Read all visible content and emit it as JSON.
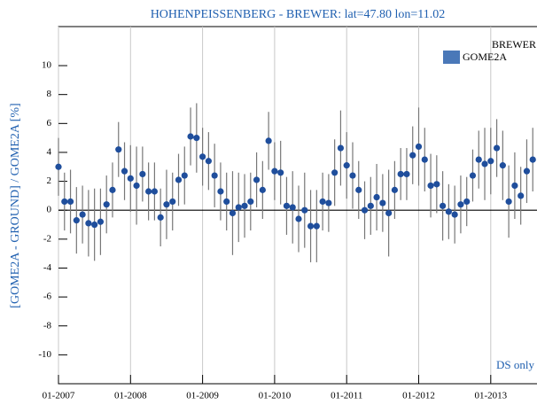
{
  "chart_data": {
    "type": "errorbar-scatter",
    "title": "HOHENPEISSENBERG - BREWER: lat=47.80 lon=11.02",
    "y_label": "[GOME2A - GROUND] / GOME2A [%]",
    "legend_title": "BREWER",
    "annotation": "DS only",
    "legend": "top-right",
    "grid": true,
    "x": [
      "2007-01",
      "2007-02",
      "2007-03",
      "2007-04",
      "2007-05",
      "2007-06",
      "2007-07",
      "2007-08",
      "2007-09",
      "2007-10",
      "2007-11",
      "2007-12",
      "2008-01",
      "2008-02",
      "2008-03",
      "2008-04",
      "2008-05",
      "2008-06",
      "2008-07",
      "2008-08",
      "2008-09",
      "2008-10",
      "2008-11",
      "2008-12",
      "2009-01",
      "2009-02",
      "2009-03",
      "2009-04",
      "2009-05",
      "2009-06",
      "2009-07",
      "2009-08",
      "2009-09",
      "2009-10",
      "2009-11",
      "2009-12",
      "2010-01",
      "2010-02",
      "2010-03",
      "2010-04",
      "2010-05",
      "2010-06",
      "2010-07",
      "2010-08",
      "2010-09",
      "2010-10",
      "2010-11",
      "2010-12",
      "2011-01",
      "2011-02",
      "2011-03",
      "2011-04",
      "2011-05",
      "2011-06",
      "2011-07",
      "2011-08",
      "2011-09",
      "2011-10",
      "2011-11",
      "2011-12",
      "2012-01",
      "2012-02",
      "2012-03",
      "2012-04",
      "2012-05",
      "2012-06",
      "2012-07",
      "2012-08",
      "2012-09",
      "2012-10",
      "2012-11",
      "2012-12",
      "2013-01",
      "2013-02",
      "2013-03",
      "2013-04",
      "2013-05",
      "2013-06",
      "2013-07",
      "2013-08"
    ],
    "series": [
      {
        "name": "GOME2A",
        "color": "#1f4e9c",
        "legend_color": "#4a78b8",
        "values": [
          3.0,
          0.6,
          0.6,
          -0.7,
          -0.3,
          -0.9,
          -1.0,
          -0.8,
          0.4,
          1.4,
          4.2,
          2.7,
          2.2,
          1.7,
          2.5,
          1.3,
          1.3,
          -0.5,
          0.4,
          0.6,
          2.1,
          2.4,
          5.1,
          5.0,
          3.7,
          3.4,
          2.4,
          1.3,
          0.6,
          -0.2,
          0.2,
          0.3,
          0.6,
          2.1,
          1.4,
          4.8,
          2.7,
          2.6,
          0.3,
          0.2,
          -0.6,
          0.0,
          -1.1,
          -1.1,
          0.6,
          0.5,
          2.6,
          4.3,
          3.1,
          2.4,
          1.4,
          0.0,
          0.3,
          0.9,
          0.5,
          -0.2,
          1.4,
          2.5,
          2.5,
          3.8,
          4.4,
          3.5,
          1.7,
          1.8,
          0.3,
          -0.1,
          -0.3,
          0.4,
          0.6,
          2.4,
          3.5,
          3.2,
          3.4,
          4.3,
          3.1,
          0.6,
          1.7,
          1.0,
          2.7,
          3.5
        ],
        "errors": [
          2.0,
          2.0,
          2.2,
          2.3,
          2.0,
          2.3,
          2.5,
          2.3,
          2.0,
          1.9,
          1.9,
          2.0,
          2.3,
          2.7,
          1.9,
          2.0,
          2.0,
          2.0,
          2.4,
          2.0,
          1.8,
          2.0,
          2.0,
          2.4,
          2.0,
          2.0,
          2.2,
          2.0,
          2.0,
          2.9,
          2.4,
          2.2,
          2.0,
          1.9,
          2.0,
          2.0,
          2.0,
          2.2,
          2.0,
          2.5,
          2.3,
          2.6,
          2.5,
          2.5,
          2.0,
          2.0,
          2.3,
          2.6,
          2.3,
          2.3,
          2.0,
          2.0,
          2.0,
          2.3,
          2.0,
          3.0,
          2.0,
          1.8,
          1.8,
          2.0,
          2.7,
          2.2,
          2.2,
          2.0,
          2.4,
          1.9,
          2.0,
          2.0,
          1.7,
          1.8,
          2.0,
          2.5,
          2.3,
          2.0,
          2.4,
          2.5,
          2.3,
          2.0,
          2.2,
          2.2
        ]
      }
    ],
    "xlim": [
      "2007-01",
      "2013-09"
    ],
    "xticks": [
      {
        "value": "2007-01",
        "label": "01-2007"
      },
      {
        "value": "2008-01",
        "label": "01-2008"
      },
      {
        "value": "2009-01",
        "label": "01-2009"
      },
      {
        "value": "2010-01",
        "label": "01-2010"
      },
      {
        "value": "2011-01",
        "label": "01-2011"
      },
      {
        "value": "2012-01",
        "label": "01-2012"
      },
      {
        "value": "2013-01",
        "label": "01-2013"
      }
    ],
    "ylim": [
      -12,
      12.7
    ],
    "yticks": [
      -10,
      -8,
      -6,
      -4,
      -2,
      0,
      2,
      4,
      6,
      8,
      10
    ]
  }
}
